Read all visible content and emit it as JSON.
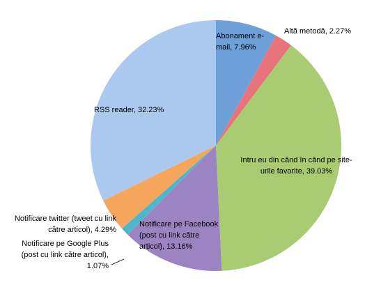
{
  "chart_data": {
    "type": "pie",
    "values": [
      7.96,
      2.27,
      39.03,
      13.16,
      1.07,
      4.29,
      32.23
    ],
    "value_labels": [
      "Abonament e-mail, 7.96%",
      "Altă metodă, 2.27%",
      "Intru eu din când în când pe site-urile favorite, 39.03%",
      "Notificare pe Facebook (post cu link către articol), 13.16%",
      "Notificare pe Google Plus (post cu link către articol), 1.07%",
      "Notificare twitter (tweet cu link către articol), 4.29%",
      "RSS reader, 32.23%"
    ],
    "colors": [
      "#6d9fd9",
      "#e8737b",
      "#a9cb72",
      "#9c84c2",
      "#4db7cb",
      "#f5a65c",
      "#abc9ee"
    ]
  }
}
